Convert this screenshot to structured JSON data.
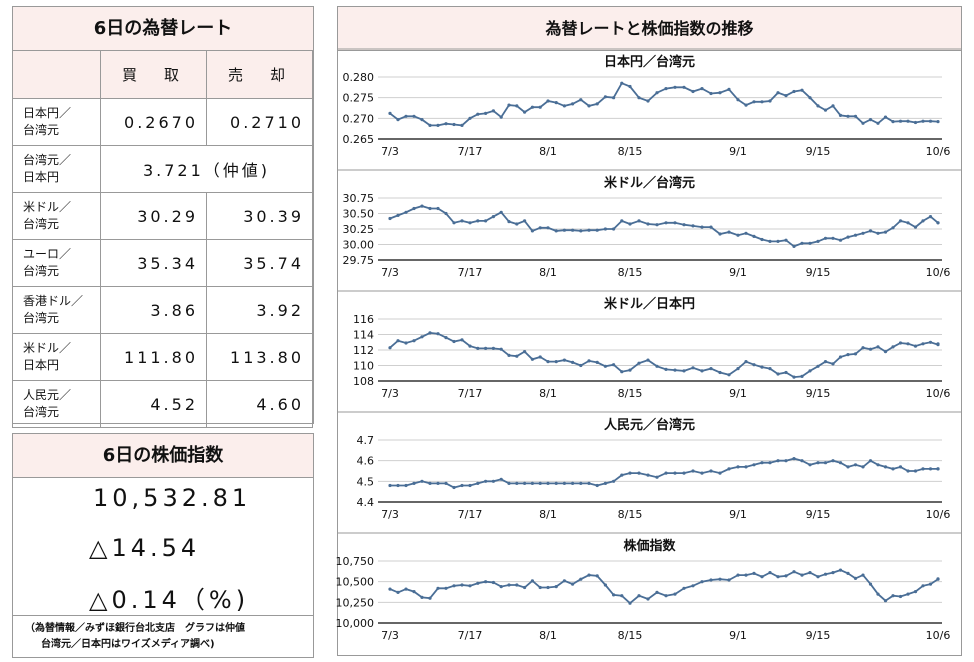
{
  "rates_table": {
    "title": "6日の為替レート",
    "buy_label": "買　取",
    "sell_label": "売　却",
    "rows": [
      {
        "name_top": "日本円／",
        "name_bottom": "台湾元",
        "buy": "0.2670",
        "sell": "0.2710"
      },
      {
        "name_top": "台湾元／",
        "name_bottom": "日本円",
        "mid": "3.721（仲値)"
      },
      {
        "name_top": "米ドル／",
        "name_bottom": "台湾元",
        "buy": "30.29",
        "sell": "30.39"
      },
      {
        "name_top": "ユーロ／",
        "name_bottom": "台湾元",
        "buy": "35.34",
        "sell": "35.74"
      },
      {
        "name_top": "香港ドル／",
        "name_bottom": "台湾元",
        "buy": "3.86",
        "sell": "3.92"
      },
      {
        "name_top": "米ドル／",
        "name_bottom": "日本円",
        "buy": "111.80",
        "sell": "113.80"
      },
      {
        "name_top": "人民元／",
        "name_bottom": "台湾元",
        "buy": "4.52",
        "sell": "4.60"
      }
    ]
  },
  "stock_box": {
    "title": "6日の株価指数",
    "index": "10,532.81",
    "change": "△14.54",
    "change_pct": "△0.14（%)"
  },
  "note": {
    "line1": "（為替情報／みずほ銀行台北支店　グラフは仲値",
    "line2": "台湾元／日本円はワイズメディア調べ)"
  },
  "charts_panel_title": "為替レートと株価指数の推移",
  "colors": {
    "line": "#4a6e96",
    "grid": "#cfcfcf",
    "header_bg": "#fbeeec"
  },
  "chart_data": [
    {
      "type": "line",
      "title": "日本円／台湾元",
      "x_ticks": [
        "7/3",
        "7/17",
        "8/1",
        "8/15",
        "9/1",
        "9/15",
        "10/6"
      ],
      "ylim": [
        0.265,
        0.28
      ],
      "y_ticks": [
        0.265,
        0.27,
        0.275,
        0.28
      ],
      "y_tick_labels": [
        "0.265",
        "0.270",
        "0.275",
        "0.280"
      ],
      "grid": true,
      "series": [
        {
          "values": [
            0.2712,
            0.2697,
            0.2705,
            0.2705,
            0.2697,
            0.2683,
            0.2683,
            0.2687,
            0.2685,
            0.2683,
            0.27,
            0.271,
            0.2712,
            0.2718,
            0.2703,
            0.2732,
            0.273,
            0.2715,
            0.2727,
            0.2727,
            0.2742,
            0.2738,
            0.273,
            0.2735,
            0.2745,
            0.273,
            0.2735,
            0.2752,
            0.275,
            0.2785,
            0.2777,
            0.275,
            0.2742,
            0.2762,
            0.2772,
            0.2775,
            0.2775,
            0.2765,
            0.2772,
            0.276,
            0.2762,
            0.277,
            0.2745,
            0.2732,
            0.274,
            0.274,
            0.2742,
            0.2762,
            0.2755,
            0.2765,
            0.2768,
            0.275,
            0.273,
            0.272,
            0.273,
            0.2707,
            0.2705,
            0.2705,
            0.2688,
            0.2697,
            0.2688,
            0.2703,
            0.2692,
            0.2693,
            0.2693,
            0.269,
            0.2693,
            0.2693,
            0.2692
          ]
        }
      ]
    },
    {
      "type": "line",
      "title": "米ドル／台湾元",
      "x_ticks": [
        "7/3",
        "7/17",
        "8/1",
        "8/15",
        "9/1",
        "9/15",
        "10/6"
      ],
      "ylim": [
        29.75,
        30.75
      ],
      "y_ticks": [
        29.75,
        30.0,
        30.25,
        30.5,
        30.75
      ],
      "y_tick_labels": [
        "29.75",
        "30.00",
        "30.25",
        "30.50",
        "30.75"
      ],
      "grid": true,
      "series": [
        {
          "values": [
            30.42,
            30.47,
            30.52,
            30.58,
            30.62,
            30.58,
            30.58,
            30.5,
            30.35,
            30.38,
            30.35,
            30.38,
            30.38,
            30.45,
            30.52,
            30.37,
            30.33,
            30.38,
            30.22,
            30.27,
            30.27,
            30.22,
            30.23,
            30.23,
            30.22,
            30.23,
            30.23,
            30.25,
            30.25,
            30.38,
            30.33,
            30.38,
            30.33,
            30.32,
            30.35,
            30.35,
            30.32,
            30.3,
            30.28,
            30.28,
            30.17,
            30.2,
            30.15,
            30.18,
            30.13,
            30.08,
            30.05,
            30.05,
            30.07,
            29.97,
            30.02,
            30.02,
            30.05,
            30.1,
            30.1,
            30.07,
            30.12,
            30.15,
            30.18,
            30.22,
            30.18,
            30.2,
            30.27,
            30.38,
            30.35,
            30.28,
            30.38,
            30.45,
            30.35,
            30.35
          ]
        }
      ]
    },
    {
      "type": "line",
      "title": "米ドル／日本円",
      "x_ticks": [
        "7/3",
        "7/17",
        "8/1",
        "8/15",
        "9/1",
        "9/15",
        "10/6"
      ],
      "ylim": [
        108,
        116
      ],
      "y_ticks": [
        108,
        110,
        112,
        114,
        116
      ],
      "y_tick_labels": [
        "108",
        "110",
        "112",
        "114",
        "116"
      ],
      "grid": true,
      "series": [
        {
          "values": [
            112.3,
            113.2,
            112.9,
            113.2,
            113.7,
            114.2,
            114.1,
            113.6,
            113.1,
            113.3,
            112.5,
            112.2,
            112.2,
            112.2,
            112.1,
            111.3,
            111.2,
            111.8,
            110.8,
            111.1,
            110.5,
            110.5,
            110.7,
            110.4,
            110.0,
            110.6,
            110.4,
            109.9,
            110.1,
            109.2,
            109.4,
            110.3,
            110.7,
            109.9,
            109.5,
            109.4,
            109.3,
            109.7,
            109.3,
            109.6,
            109.1,
            108.8,
            109.6,
            110.5,
            110.1,
            109.8,
            109.6,
            108.9,
            109.1,
            108.5,
            108.6,
            109.3,
            109.9,
            110.5,
            110.2,
            111.1,
            111.4,
            111.5,
            112.3,
            112.1,
            112.4,
            111.8,
            112.4,
            112.9,
            112.8,
            112.5,
            112.8,
            113.0,
            112.7,
            112.8
          ]
        }
      ]
    },
    {
      "type": "line",
      "title": "人民元／台湾元",
      "x_ticks": [
        "7/3",
        "7/17",
        "8/1",
        "8/15",
        "9/1",
        "9/15",
        "10/6"
      ],
      "ylim": [
        4.4,
        4.7
      ],
      "y_ticks": [
        4.4,
        4.5,
        4.6,
        4.7
      ],
      "y_tick_labels": [
        "4.4",
        "4.5",
        "4.6",
        "4.7"
      ],
      "grid": true,
      "series": [
        {
          "values": [
            4.48,
            4.48,
            4.48,
            4.49,
            4.5,
            4.49,
            4.49,
            4.49,
            4.47,
            4.48,
            4.48,
            4.49,
            4.5,
            4.5,
            4.51,
            4.49,
            4.49,
            4.49,
            4.49,
            4.49,
            4.49,
            4.49,
            4.49,
            4.49,
            4.49,
            4.49,
            4.48,
            4.49,
            4.5,
            4.53,
            4.54,
            4.54,
            4.53,
            4.52,
            4.54,
            4.54,
            4.54,
            4.55,
            4.54,
            4.55,
            4.54,
            4.56,
            4.57,
            4.57,
            4.58,
            4.59,
            4.59,
            4.6,
            4.6,
            4.61,
            4.6,
            4.58,
            4.59,
            4.59,
            4.6,
            4.59,
            4.57,
            4.58,
            4.57,
            4.6,
            4.58,
            4.57,
            4.56,
            4.57,
            4.55,
            4.55,
            4.56,
            4.56,
            4.56,
            4.56
          ]
        }
      ]
    },
    {
      "type": "line",
      "title": "株価指数",
      "x_ticks": [
        "7/3",
        "7/17",
        "8/1",
        "8/15",
        "9/1",
        "9/15",
        "10/6"
      ],
      "ylim": [
        10000,
        10750
      ],
      "y_ticks": [
        10000,
        10250,
        10500,
        10750
      ],
      "y_tick_labels": [
        "10,000",
        "10,250",
        "10,500",
        "10,750"
      ],
      "grid": true,
      "series": [
        {
          "values": [
            10410,
            10370,
            10410,
            10380,
            10310,
            10300,
            10420,
            10420,
            10450,
            10460,
            10450,
            10480,
            10500,
            10490,
            10440,
            10460,
            10460,
            10430,
            10510,
            10430,
            10430,
            10440,
            10510,
            10470,
            10530,
            10580,
            10570,
            10460,
            10340,
            10330,
            10240,
            10330,
            10290,
            10370,
            10330,
            10350,
            10420,
            10450,
            10500,
            10520,
            10530,
            10520,
            10580,
            10580,
            10600,
            10560,
            10610,
            10560,
            10570,
            10620,
            10580,
            10610,
            10560,
            10590,
            10610,
            10640,
            10600,
            10540,
            10580,
            10470,
            10350,
            10270,
            10330,
            10320,
            10350,
            10380,
            10450,
            10470,
            10530,
            10533
          ]
        }
      ]
    }
  ]
}
